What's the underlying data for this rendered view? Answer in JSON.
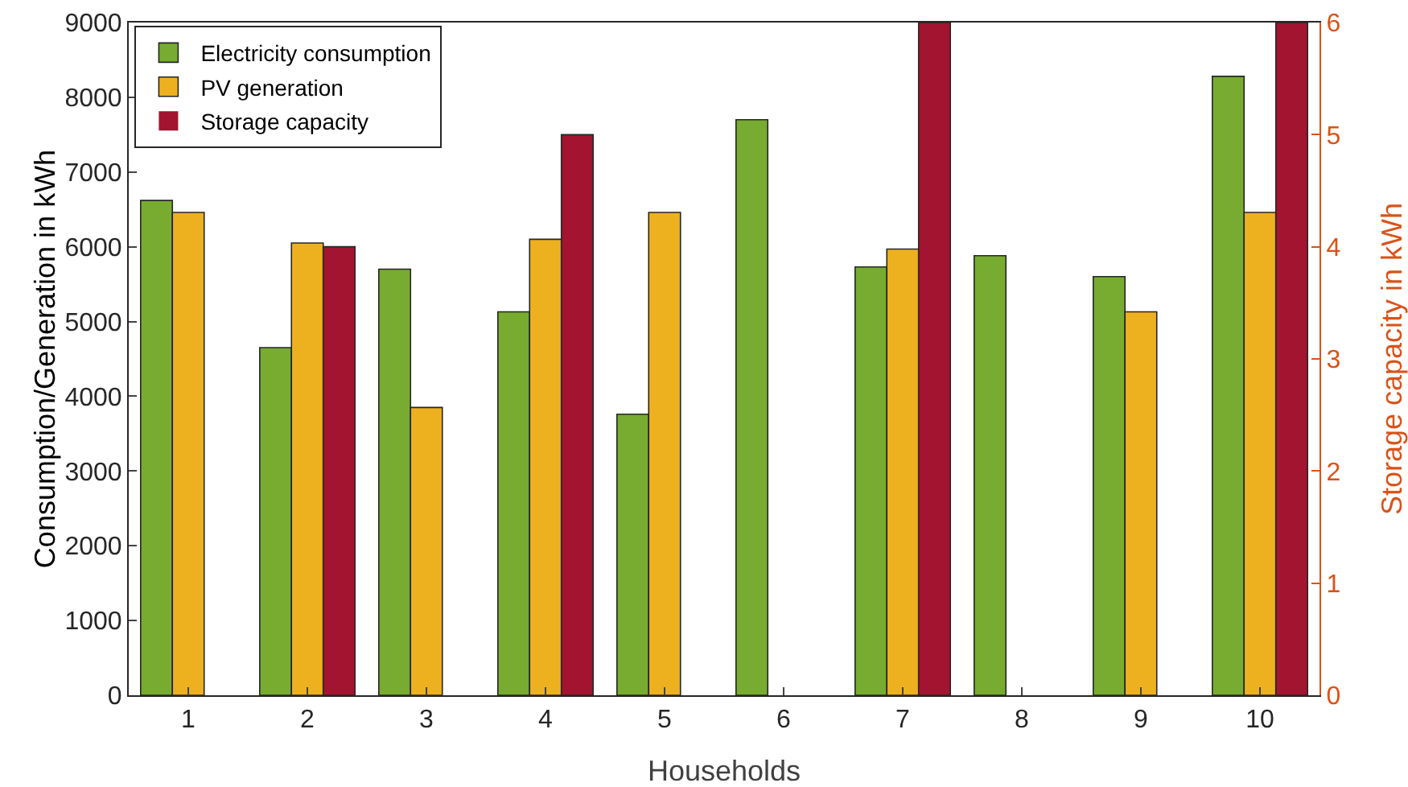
{
  "chart_data": {
    "type": "bar",
    "xlabel": "Households",
    "ylabel": "Consumption/Generation in kWh",
    "y2label": "Storage capacity in kWh",
    "categories": [
      "1",
      "2",
      "3",
      "4",
      "5",
      "6",
      "7",
      "8",
      "9",
      "10"
    ],
    "series": [
      {
        "name": "Electricity consumption",
        "color": "#77ac30",
        "values": [
          6620,
          4650,
          5700,
          5130,
          3760,
          7700,
          5730,
          5880,
          5600,
          8280
        ]
      },
      {
        "name": "PV generation",
        "color": "#edb120",
        "values": [
          6460,
          6050,
          3850,
          6100,
          6460,
          0,
          5970,
          0,
          5130,
          6460
        ]
      },
      {
        "name": "Storage capacity",
        "color": "#a2142f",
        "axis": "y2",
        "values": [
          0,
          4,
          0,
          5,
          0,
          0,
          6,
          0,
          0,
          6
        ]
      }
    ],
    "ylim": [
      0,
      9000
    ],
    "yticks": [
      0,
      1000,
      2000,
      3000,
      4000,
      5000,
      6000,
      7000,
      8000,
      9000
    ],
    "y2lim": [
      0,
      6
    ],
    "y2ticks": [
      0,
      1,
      2,
      3,
      4,
      5,
      6
    ],
    "grid": false,
    "legend": "top left"
  }
}
